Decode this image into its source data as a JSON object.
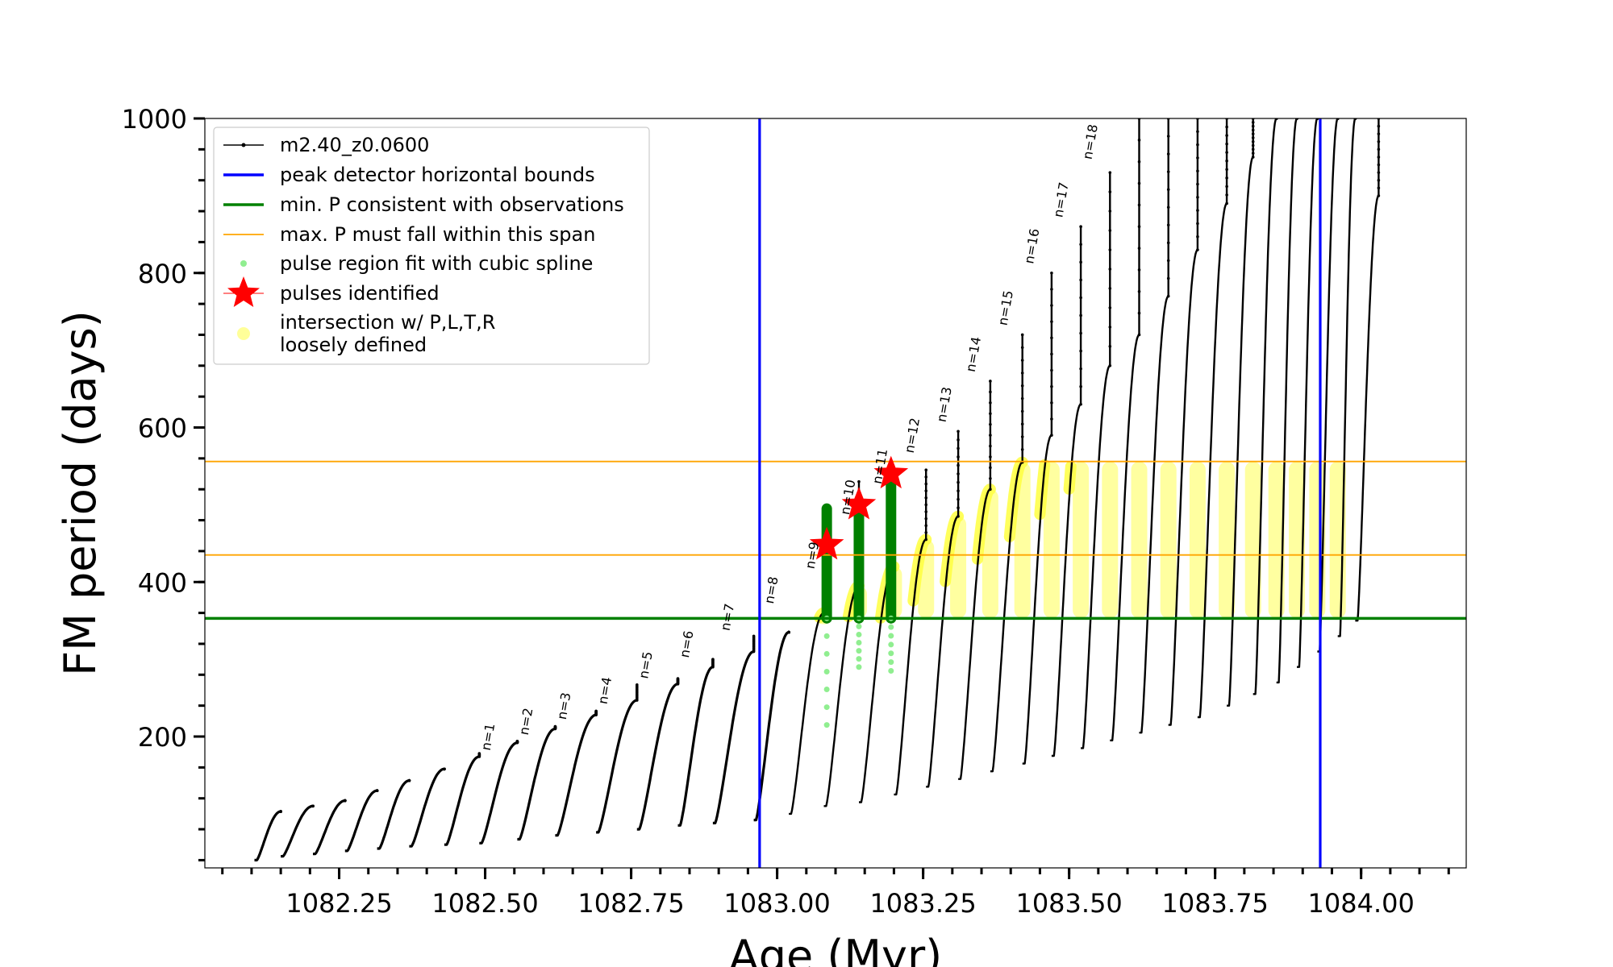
{
  "chart_data": {
    "type": "scatter",
    "xlabel": "Age (Myr)",
    "ylabel": "FM period (days)",
    "xlim": [
      1082.02,
      1084.18
    ],
    "ylim": [
      30,
      1000
    ],
    "x_ticks": [
      1082.25,
      1082.5,
      1082.75,
      1083.0,
      1083.25,
      1083.5,
      1083.75,
      1084.0
    ],
    "x_tick_labels": [
      "1082.25",
      "1082.50",
      "1082.75",
      "1083.00",
      "1083.25",
      "1083.50",
      "1083.75",
      "1084.00"
    ],
    "y_ticks": [
      200,
      400,
      600,
      800,
      1000
    ],
    "y_tick_labels": [
      "200",
      "400",
      "600",
      "800",
      "1000"
    ],
    "legend_position": "upper-left",
    "legend": [
      {
        "name": "m2.40_z0.0600",
        "marker": "line-dot",
        "color": "#000000"
      },
      {
        "name": "peak detector horizontal bounds",
        "marker": "line",
        "color": "#0000ff"
      },
      {
        "name": "min. P consistent with observations",
        "marker": "line",
        "color": "#008000"
      },
      {
        "name": "max. P must fall within this span",
        "marker": "line",
        "color": "#ffa500"
      },
      {
        "name": "pulse region fit with cubic spline",
        "marker": "dot",
        "color": "#90ee90"
      },
      {
        "name": "pulses identified",
        "marker": "star",
        "color": "#ff0000"
      },
      {
        "name": "intersection w/ P,L,T,R",
        "name_line2": "loosely defined",
        "marker": "circle",
        "color": "#ffff99"
      }
    ],
    "vertical_lines": [
      {
        "x": 1082.97,
        "color": "#0000ff"
      },
      {
        "x": 1083.93,
        "color": "#0000ff"
      }
    ],
    "horizontal_lines": [
      {
        "y": 353,
        "color": "#008000"
      },
      {
        "y": 435,
        "color": "#ffa500"
      },
      {
        "y": 556,
        "color": "#ffa500"
      }
    ],
    "track": {
      "color": "#000000",
      "pulses": [
        {
          "x0": 1082.105,
          "x1": 1082.15,
          "y_start": 40,
          "y_end": 103,
          "tip": 103
        },
        {
          "x0": 1082.15,
          "x1": 1082.205,
          "y_start": 45,
          "y_end": 110,
          "tip": 110
        },
        {
          "x0": 1082.205,
          "x1": 1082.26,
          "y_start": 48,
          "y_end": 117,
          "tip": 117
        },
        {
          "x0": 1082.26,
          "x1": 1082.315,
          "y_start": 52,
          "y_end": 130,
          "tip": 130
        },
        {
          "x0": 1082.315,
          "x1": 1082.37,
          "y_start": 55,
          "y_end": 143,
          "tip": 143
        },
        {
          "x0": 1082.37,
          "x1": 1082.43,
          "y_start": 58,
          "y_end": 158,
          "tip": 158
        },
        {
          "x0": 1082.43,
          "x1": 1082.49,
          "y_start": 60,
          "y_end": 174,
          "tip": 178
        },
        {
          "x0": 1082.49,
          "x1": 1082.555,
          "y_start": 62,
          "y_end": 192,
          "tip": 194
        },
        {
          "x0": 1082.555,
          "x1": 1082.62,
          "y_start": 67,
          "y_end": 210,
          "tip": 213
        },
        {
          "x0": 1082.62,
          "x1": 1082.69,
          "y_start": 72,
          "y_end": 228,
          "tip": 233
        },
        {
          "x0": 1082.69,
          "x1": 1082.76,
          "y_start": 76,
          "y_end": 247,
          "tip": 267
        },
        {
          "x0": 1082.76,
          "x1": 1082.83,
          "y_start": 80,
          "y_end": 268,
          "tip": 275
        },
        {
          "x0": 1082.83,
          "x1": 1082.89,
          "y_start": 85,
          "y_end": 290,
          "tip": 300
        },
        {
          "x0": 1082.89,
          "x1": 1082.96,
          "y_start": 88,
          "y_end": 310,
          "tip": 330
        },
        {
          "x0": 1082.96,
          "x1": 1083.02,
          "y_start": 92,
          "y_end": 335,
          "tip": 335
        },
        {
          "x0": 1083.02,
          "x1": 1083.08,
          "y_start": 100,
          "y_end": 360,
          "tip": 360
        },
        {
          "x0": 1083.08,
          "x1": 1083.14,
          "y_start": 110,
          "y_end": 395,
          "tip": 530
        },
        {
          "x0": 1083.14,
          "x1": 1083.2,
          "y_start": 115,
          "y_end": 420,
          "tip": 515
        },
        {
          "x0": 1083.2,
          "x1": 1083.255,
          "y_start": 125,
          "y_end": 455,
          "tip": 545
        },
        {
          "x0": 1083.255,
          "x1": 1083.31,
          "y_start": 135,
          "y_end": 485,
          "tip": 595
        },
        {
          "x0": 1083.31,
          "x1": 1083.365,
          "y_start": 145,
          "y_end": 520,
          "tip": 660
        },
        {
          "x0": 1083.365,
          "x1": 1083.42,
          "y_start": 155,
          "y_end": 555,
          "tip": 720
        },
        {
          "x0": 1083.42,
          "x1": 1083.47,
          "y_start": 165,
          "y_end": 590,
          "tip": 800
        },
        {
          "x0": 1083.47,
          "x1": 1083.52,
          "y_start": 175,
          "y_end": 630,
          "tip": 860
        },
        {
          "x0": 1083.52,
          "x1": 1083.57,
          "y_start": 185,
          "y_end": 680,
          "tip": 930
        },
        {
          "x0": 1083.57,
          "x1": 1083.62,
          "y_start": 195,
          "y_end": 720,
          "tip": 1000
        },
        {
          "x0": 1083.62,
          "x1": 1083.67,
          "y_start": 205,
          "y_end": 770,
          "tip": 1000
        },
        {
          "x0": 1083.67,
          "x1": 1083.72,
          "y_start": 215,
          "y_end": 830,
          "tip": 1000
        },
        {
          "x0": 1083.72,
          "x1": 1083.77,
          "y_start": 225,
          "y_end": 890,
          "tip": 1000
        },
        {
          "x0": 1083.77,
          "x1": 1083.815,
          "y_start": 240,
          "y_end": 950,
          "tip": 1000
        },
        {
          "x0": 1083.815,
          "x1": 1083.855,
          "y_start": 255,
          "y_end": 1000,
          "tip": 1000
        },
        {
          "x0": 1083.855,
          "x1": 1083.89,
          "y_start": 270,
          "y_end": 1000,
          "tip": 1000
        },
        {
          "x0": 1083.89,
          "x1": 1083.925,
          "y_start": 290,
          "y_end": 1000,
          "tip": 1000
        },
        {
          "x0": 1083.925,
          "x1": 1083.96,
          "y_start": 310,
          "y_end": 1000,
          "tip": 1000
        },
        {
          "x0": 1083.96,
          "x1": 1083.99,
          "y_start": 330,
          "y_end": 1000,
          "tip": 1000
        },
        {
          "x0": 1083.99,
          "x1": 1084.03,
          "y_start": 350,
          "y_end": 900,
          "tip": 1000
        }
      ]
    },
    "pulse_labels": [
      {
        "text": "n=1",
        "x": 1082.5,
        "y": 175
      },
      {
        "text": "n=2",
        "x": 1082.565,
        "y": 195
      },
      {
        "text": "n=3",
        "x": 1082.63,
        "y": 215
      },
      {
        "text": "n=4",
        "x": 1082.7,
        "y": 235
      },
      {
        "text": "n=5",
        "x": 1082.77,
        "y": 268
      },
      {
        "text": "n=6",
        "x": 1082.84,
        "y": 295
      },
      {
        "text": "n=7",
        "x": 1082.91,
        "y": 330
      },
      {
        "text": "n=8",
        "x": 1082.985,
        "y": 365
      },
      {
        "text": "n=9",
        "x": 1083.055,
        "y": 410
      },
      {
        "text": "n=10",
        "x": 1083.115,
        "y": 480
      },
      {
        "text": "n=11",
        "x": 1083.17,
        "y": 520
      },
      {
        "text": "n=12",
        "x": 1083.225,
        "y": 560
      },
      {
        "text": "n=13",
        "x": 1083.28,
        "y": 600
      },
      {
        "text": "n=14",
        "x": 1083.33,
        "y": 665
      },
      {
        "text": "n=15",
        "x": 1083.385,
        "y": 725
      },
      {
        "text": "n=16",
        "x": 1083.43,
        "y": 805
      },
      {
        "text": "n=17",
        "x": 1083.48,
        "y": 865
      },
      {
        "text": "n=18",
        "x": 1083.53,
        "y": 940
      }
    ],
    "pulses_identified": [
      {
        "x": 1083.085,
        "y": 448
      },
      {
        "x": 1083.14,
        "y": 500
      },
      {
        "x": 1083.195,
        "y": 540
      }
    ],
    "spline_pulses": [
      {
        "x": 1083.085,
        "y_min": 215,
        "y_max": 495
      },
      {
        "x": 1083.14,
        "y_min": 290,
        "y_max": 500
      },
      {
        "x": 1083.195,
        "y_min": 285,
        "y_max": 540
      }
    ]
  }
}
